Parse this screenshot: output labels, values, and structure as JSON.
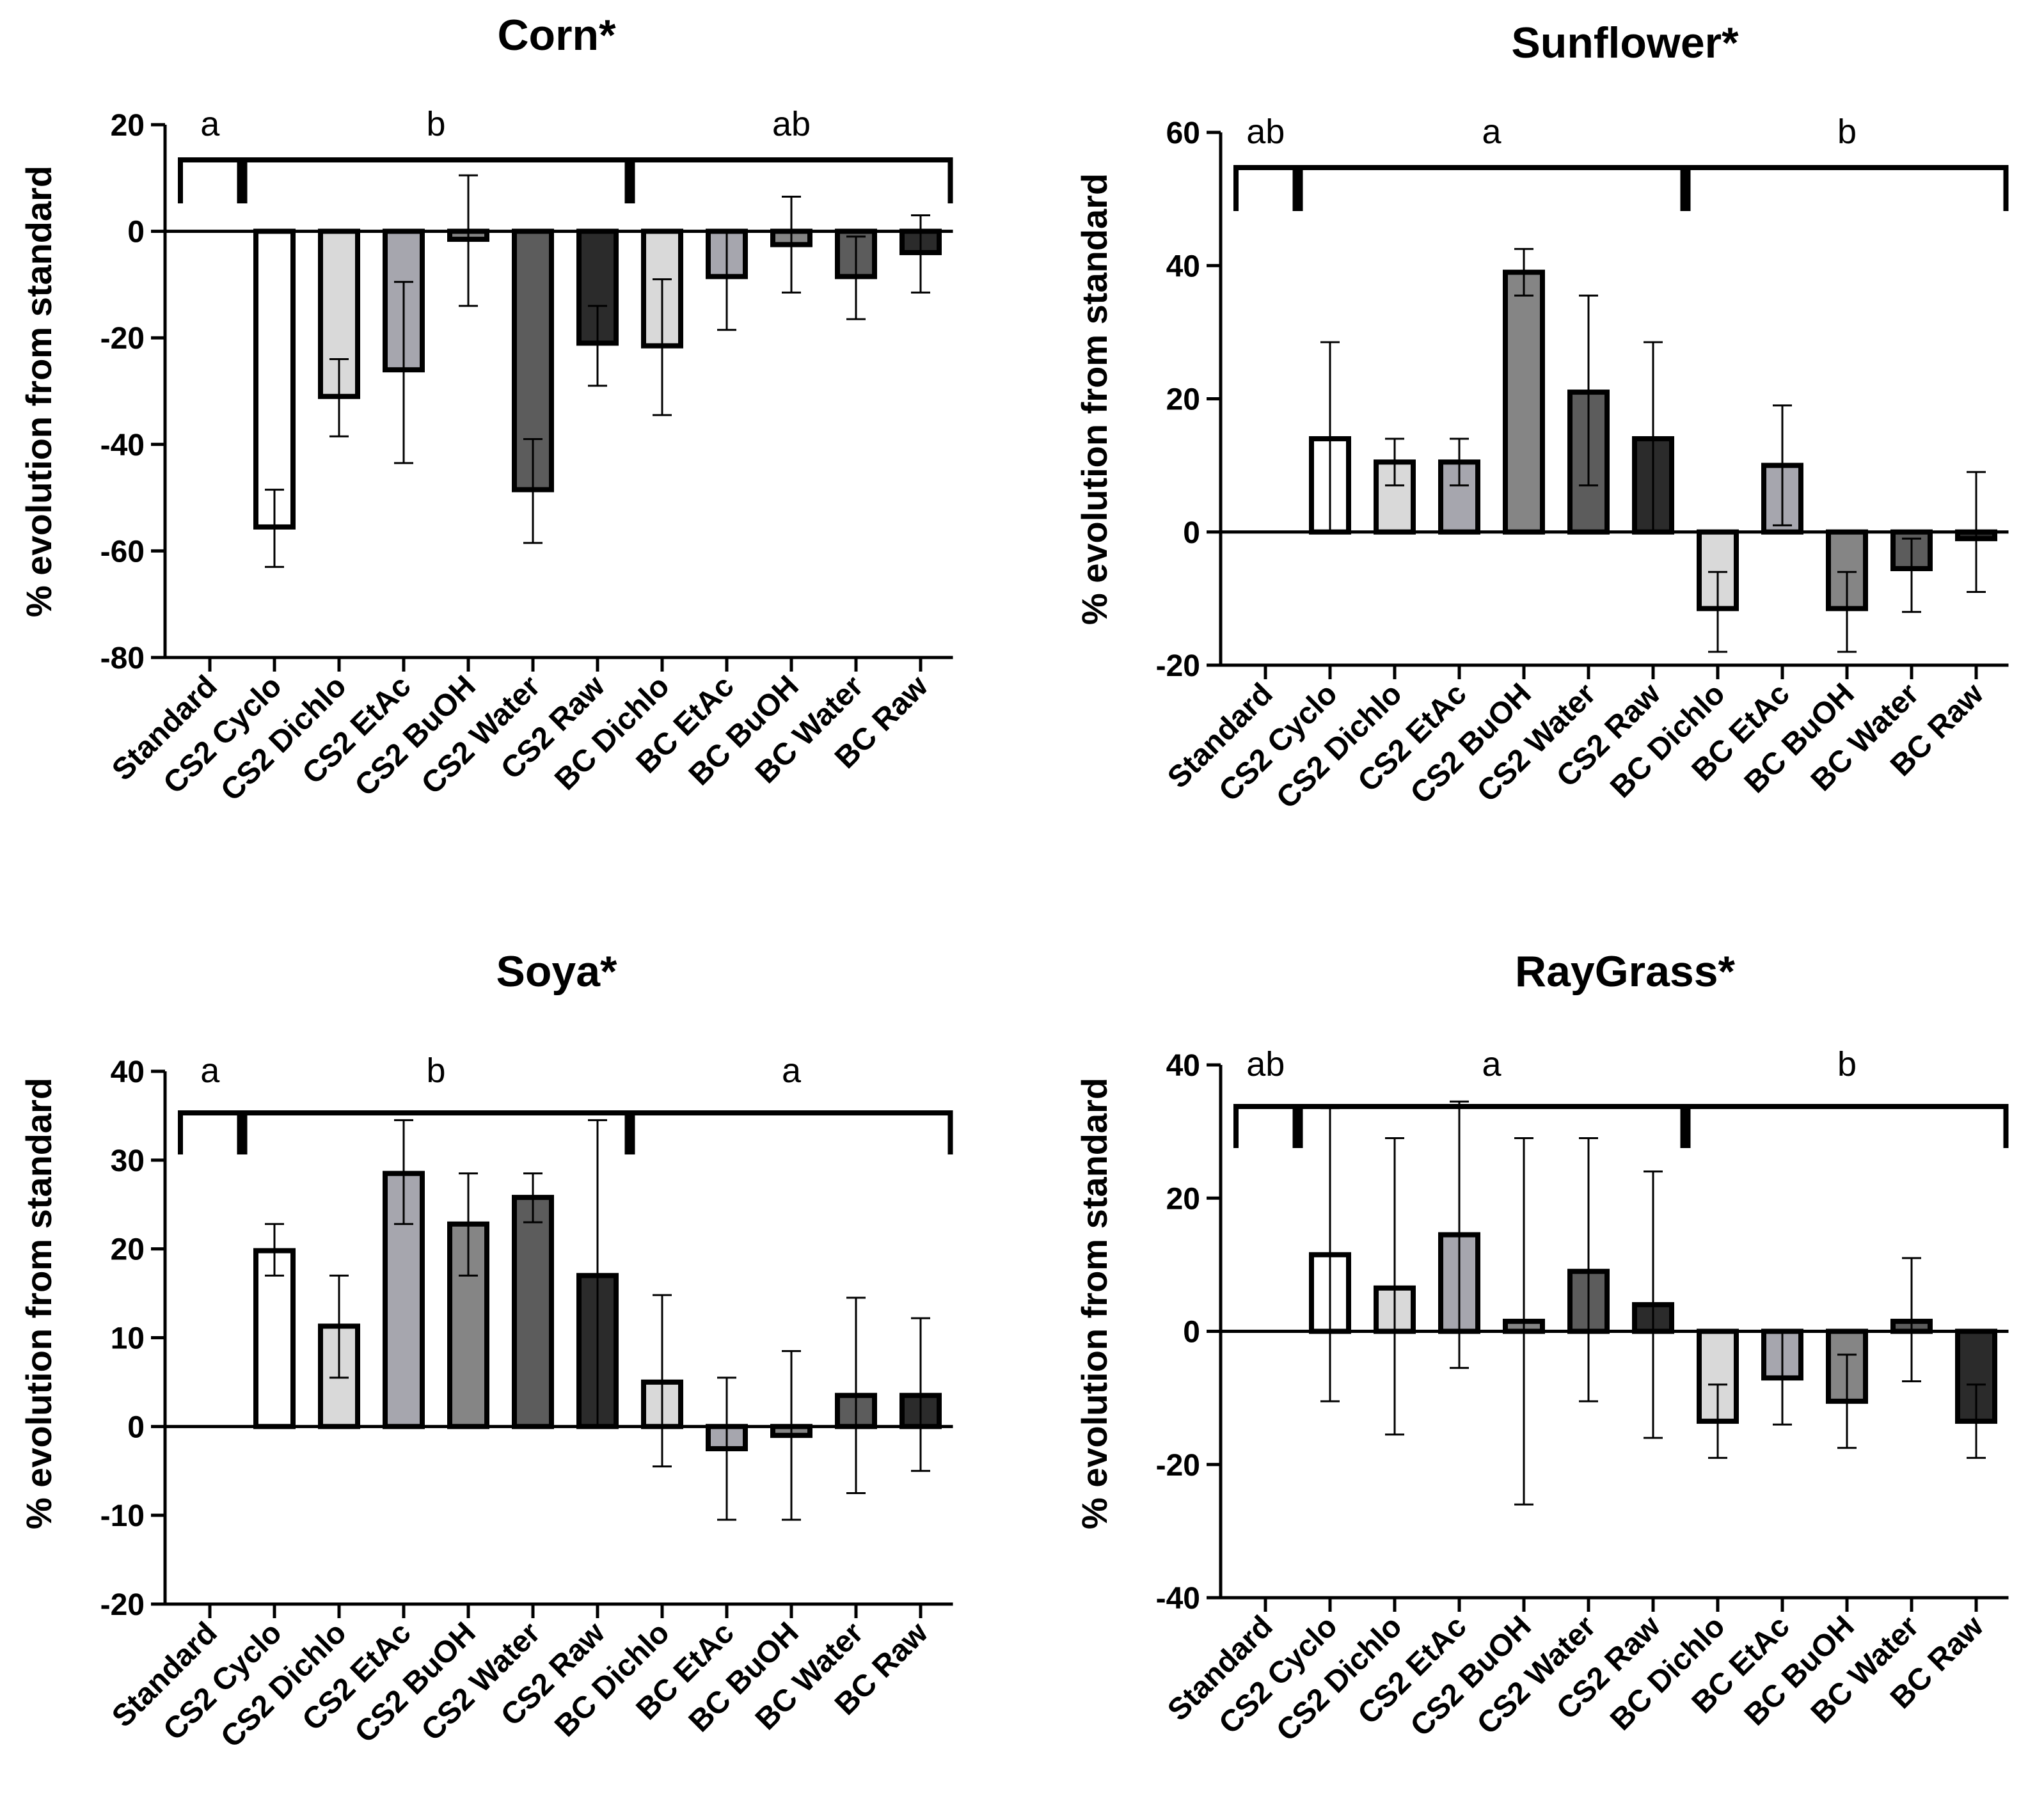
{
  "chart_data": [
    {
      "type": "bar",
      "title": "Corn*",
      "xlabel": "",
      "ylabel": "% evolution from standard",
      "ylim": [
        -80,
        20
      ],
      "yticks": [
        20,
        0,
        -20,
        -40,
        -60,
        -80
      ],
      "categories": [
        "Standard",
        "CS2 Cyclo",
        "CS2 Dichlo",
        "CS2 EtAc",
        "CS2 BuOH",
        "CS2 Water",
        "CS2 Raw",
        "BC Dichlo",
        "BC EtAc",
        "BC BuOH",
        "BC Water",
        "BC Raw"
      ],
      "values": [
        0,
        -55.5,
        -31,
        -26,
        -1.5,
        -48.5,
        -21,
        -21.5,
        -8.5,
        -2.5,
        -8.5,
        -4
      ],
      "error_low": [
        0,
        -63,
        -38.5,
        -43.5,
        -14,
        -58.5,
        -29,
        -34.5,
        -18.5,
        -11.5,
        -16.5,
        -11.5
      ],
      "error_high": [
        0,
        -48.5,
        -24,
        -9.5,
        10.5,
        -39,
        -14,
        -9,
        0,
        6.5,
        -1,
        3
      ],
      "groups": [
        {
          "letter": "a",
          "from": 0,
          "to": 0
        },
        {
          "letter": "b",
          "from": 1,
          "to": 6
        },
        {
          "letter": "ab",
          "from": 7,
          "to": 11
        }
      ]
    },
    {
      "type": "bar",
      "title": "Sunflower*",
      "xlabel": "",
      "ylabel": "% evolution from standard",
      "ylim": [
        -20,
        60
      ],
      "yticks": [
        60,
        40,
        20,
        0,
        -20
      ],
      "categories": [
        "Standard",
        "CS2 Cyclo",
        "CS2 Dichlo",
        "CS2 EtAc",
        "CS2 BuOH",
        "CS2 Water",
        "CS2 Raw",
        "BC Dichlo",
        "BC EtAc",
        "BC BuOH",
        "BC Water",
        "BC Raw"
      ],
      "values": [
        0,
        14,
        10.5,
        10.5,
        39,
        21,
        14,
        -11.5,
        10,
        -11.5,
        -5.5,
        -1
      ],
      "error_low": [
        0,
        0,
        7,
        7,
        35.5,
        7,
        0,
        -18,
        1,
        -18,
        -12,
        -9
      ],
      "error_high": [
        0,
        28.5,
        14,
        14,
        42.5,
        35.5,
        28.5,
        -6,
        19,
        -6,
        -1,
        9
      ],
      "groups": [
        {
          "letter": "ab",
          "from": 0,
          "to": 0
        },
        {
          "letter": "a",
          "from": 1,
          "to": 6
        },
        {
          "letter": "b",
          "from": 7,
          "to": 11
        }
      ]
    },
    {
      "type": "bar",
      "title": "Soya*",
      "xlabel": "",
      "ylabel": "% evolution from standard",
      "ylim": [
        -20,
        40
      ],
      "yticks": [
        40,
        30,
        20,
        10,
        0,
        -10,
        -20
      ],
      "categories": [
        "Standard",
        "CS2 Cyclo",
        "CS2 Dichlo",
        "CS2 EtAc",
        "CS2 BuOH",
        "CS2 Water",
        "CS2 Raw",
        "BC Dichlo",
        "BC EtAc",
        "BC BuOH",
        "BC Water",
        "BC Raw"
      ],
      "values": [
        0,
        19.8,
        11.3,
        28.5,
        22.8,
        25.8,
        17,
        5,
        -2.5,
        -1,
        3.5,
        3.5
      ],
      "error_low": [
        0,
        17,
        5.5,
        22.8,
        17,
        23,
        0,
        -4.5,
        -10.5,
        -10.5,
        -7.5,
        -5
      ],
      "error_high": [
        0,
        22.8,
        17,
        34.5,
        28.5,
        28.5,
        34.5,
        14.8,
        5.5,
        8.5,
        14.5,
        12.2
      ],
      "groups": [
        {
          "letter": "a",
          "from": 0,
          "to": 0
        },
        {
          "letter": "b",
          "from": 1,
          "to": 6
        },
        {
          "letter": "a",
          "from": 7,
          "to": 11
        }
      ]
    },
    {
      "type": "bar",
      "title": "RayGrass*",
      "xlabel": "",
      "ylabel": "% evolution from standard",
      "ylim": [
        -40,
        40
      ],
      "yticks": [
        40,
        20,
        0,
        -20,
        -40
      ],
      "categories": [
        "Standard",
        "CS2 Cyclo",
        "CS2 Dichlo",
        "CS2 EtAc",
        "CS2 BuOH",
        "CS2 Water",
        "CS2 Raw",
        "BC Dichlo",
        "BC EtAc",
        "BC BuOH",
        "BC Water",
        "BC Raw"
      ],
      "values": [
        0,
        11.5,
        6.5,
        14.5,
        1.5,
        9,
        4,
        -13.5,
        -7,
        -10.5,
        1.5,
        -13.5
      ],
      "error_low": [
        0,
        -10.5,
        -15.5,
        -5.5,
        -26,
        -10.5,
        -16,
        -19,
        -14,
        -17.5,
        -7.5,
        -19
      ],
      "error_high": [
        0,
        33.5,
        29,
        34.5,
        29,
        29,
        24,
        -8,
        0,
        -3.5,
        11,
        -8
      ],
      "groups": [
        {
          "letter": "ab",
          "from": 0,
          "to": 0
        },
        {
          "letter": "a",
          "from": 1,
          "to": 6
        },
        {
          "letter": "b",
          "from": 7,
          "to": 11
        }
      ]
    }
  ],
  "bar_colors": [
    "#ffffff",
    "#ffffff",
    "#d9d9d9",
    "#a6a6ae",
    "#858585",
    "#5c5c5c",
    "#2b2b2b",
    "#d9d9d9",
    "#a6a6ae",
    "#858585",
    "#5c5c5c",
    "#2b2b2b"
  ]
}
